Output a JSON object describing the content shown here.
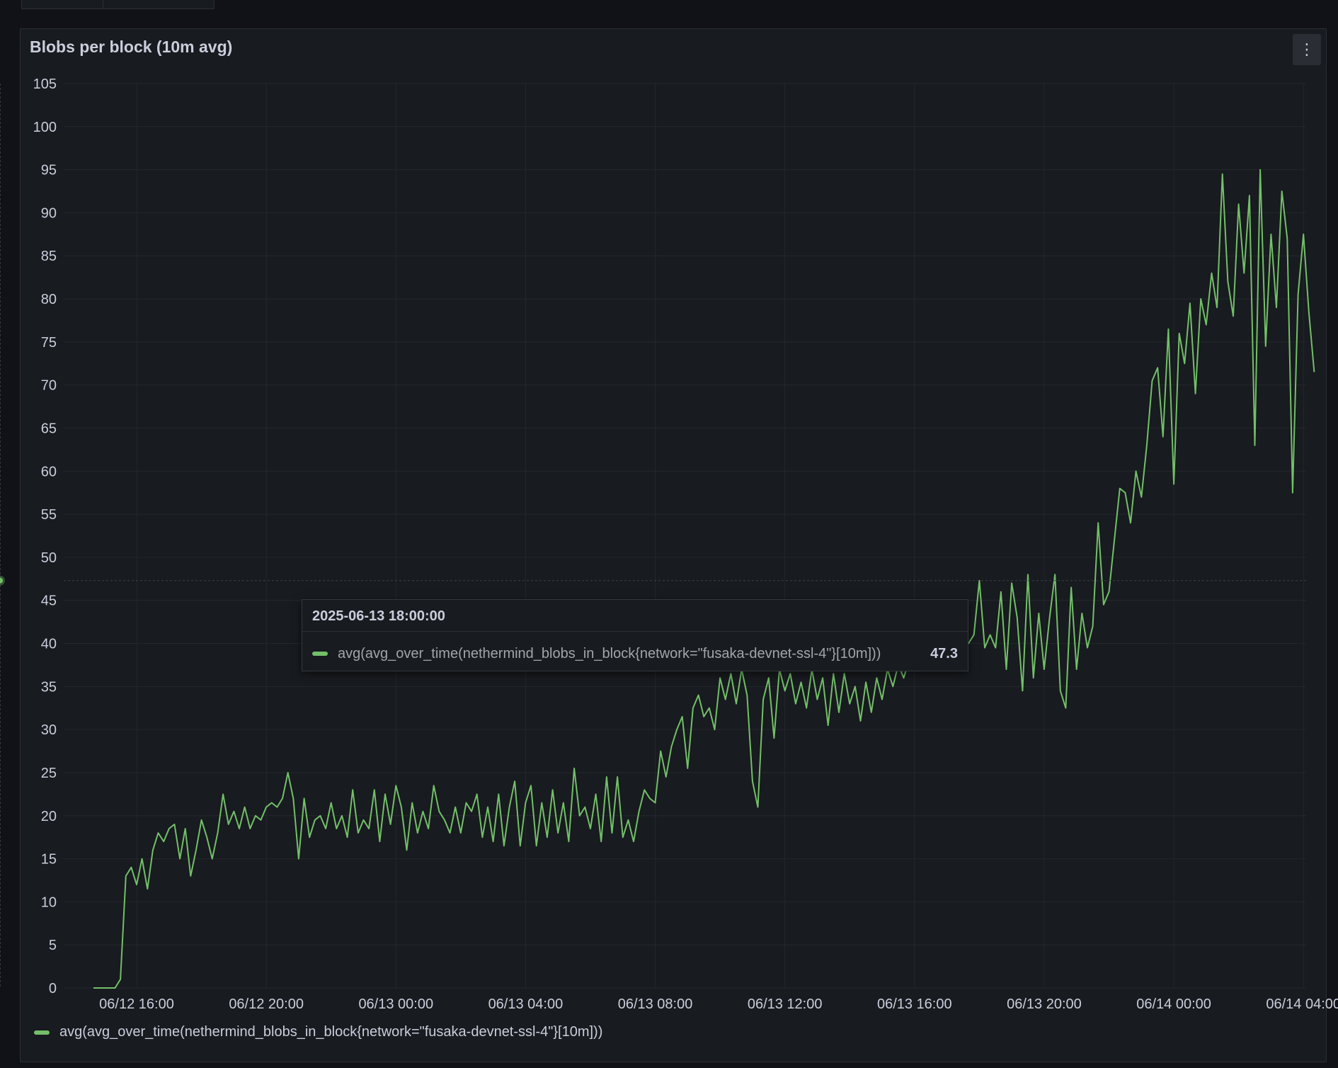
{
  "panel": {
    "title": "Blobs per block (10m avg)",
    "menu_icon": "kebab-menu-icon"
  },
  "colors": {
    "series": "#73bf69",
    "grid": "#24272c",
    "text": "#ccccdc",
    "panel_bg": "#181b1f"
  },
  "tooltip": {
    "time": "2025-06-13 18:00:00",
    "series_name": "avg(avg_over_time(nethermind_blobs_in_block{network=\"fusaka-devnet-ssl-4\"}[10m]))",
    "value": "47.3",
    "x": "2025-06-13 18:00:00",
    "y": 47.3
  },
  "legend": {
    "series_name": "avg(avg_over_time(nethermind_blobs_in_block{network=\"fusaka-devnet-ssl-4\"}[10m]))"
  },
  "chart_data": {
    "type": "line",
    "title": "Blobs per block (10m avg)",
    "xlabel": "",
    "ylabel": "",
    "xlim": [
      "2025-06-12 13:45",
      "2025-06-14 04:05"
    ],
    "ylim": [
      0,
      105
    ],
    "yticks": [
      0,
      5,
      10,
      15,
      20,
      25,
      30,
      35,
      40,
      45,
      50,
      55,
      60,
      65,
      70,
      75,
      80,
      85,
      90,
      95,
      100,
      105
    ],
    "xtick_labels": [
      "06/12 16:00",
      "06/12 20:00",
      "06/13 00:00",
      "06/13 04:00",
      "06/13 08:00",
      "06/13 12:00",
      "06/13 16:00",
      "06/13 20:00",
      "06/14 00:00",
      "06/14 04:00"
    ],
    "xticks": [
      "2025-06-12 16:00",
      "2025-06-12 20:00",
      "2025-06-13 00:00",
      "2025-06-13 04:00",
      "2025-06-13 08:00",
      "2025-06-13 12:00",
      "2025-06-13 16:00",
      "2025-06-13 20:00",
      "2025-06-14 00:00",
      "2025-06-14 04:00"
    ],
    "grid": true,
    "legend": "bottom-left",
    "series": [
      {
        "name": "avg(avg_over_time(nethermind_blobs_in_block{network=\"fusaka-devnet-ssl-4\"}[10m]))",
        "color": "#73bf69",
        "points": [
          [
            "2025-06-12 14:40",
            0
          ],
          [
            "2025-06-12 15:00",
            0
          ],
          [
            "2025-06-12 15:20",
            0
          ],
          [
            "2025-06-12 15:30",
            1
          ],
          [
            "2025-06-12 15:40",
            13
          ],
          [
            "2025-06-12 15:50",
            14
          ],
          [
            "2025-06-12 16:00",
            12
          ],
          [
            "2025-06-12 16:10",
            15
          ],
          [
            "2025-06-12 16:20",
            11.5
          ],
          [
            "2025-06-12 16:30",
            16
          ],
          [
            "2025-06-12 16:40",
            18
          ],
          [
            "2025-06-12 16:50",
            17
          ],
          [
            "2025-06-12 17:00",
            18.5
          ],
          [
            "2025-06-12 17:10",
            19
          ],
          [
            "2025-06-12 17:20",
            15
          ],
          [
            "2025-06-12 17:30",
            18.5
          ],
          [
            "2025-06-12 17:40",
            13
          ],
          [
            "2025-06-12 17:50",
            16
          ],
          [
            "2025-06-12 18:00",
            19.5
          ],
          [
            "2025-06-12 18:10",
            17.5
          ],
          [
            "2025-06-12 18:20",
            15
          ],
          [
            "2025-06-12 18:30",
            18
          ],
          [
            "2025-06-12 18:40",
            22.5
          ],
          [
            "2025-06-12 18:50",
            19
          ],
          [
            "2025-06-12 19:00",
            20.5
          ],
          [
            "2025-06-12 19:10",
            18.5
          ],
          [
            "2025-06-12 19:20",
            21
          ],
          [
            "2025-06-12 19:30",
            18.5
          ],
          [
            "2025-06-12 19:40",
            20
          ],
          [
            "2025-06-12 19:50",
            19.5
          ],
          [
            "2025-06-12 20:00",
            21
          ],
          [
            "2025-06-12 20:10",
            21.5
          ],
          [
            "2025-06-12 20:20",
            21
          ],
          [
            "2025-06-12 20:30",
            22
          ],
          [
            "2025-06-12 20:40",
            25
          ],
          [
            "2025-06-12 20:50",
            22
          ],
          [
            "2025-06-12 21:00",
            15
          ],
          [
            "2025-06-12 21:10",
            22
          ],
          [
            "2025-06-12 21:20",
            17.5
          ],
          [
            "2025-06-12 21:30",
            19.5
          ],
          [
            "2025-06-12 21:40",
            20
          ],
          [
            "2025-06-12 21:50",
            18.5
          ],
          [
            "2025-06-12 22:00",
            21.5
          ],
          [
            "2025-06-12 22:10",
            18.5
          ],
          [
            "2025-06-12 22:20",
            20
          ],
          [
            "2025-06-12 22:30",
            17.5
          ],
          [
            "2025-06-12 22:40",
            23
          ],
          [
            "2025-06-12 22:50",
            18
          ],
          [
            "2025-06-12 23:00",
            19.5
          ],
          [
            "2025-06-12 23:10",
            18.5
          ],
          [
            "2025-06-12 23:20",
            23
          ],
          [
            "2025-06-12 23:30",
            17
          ],
          [
            "2025-06-12 23:40",
            22.5
          ],
          [
            "2025-06-12 23:50",
            19
          ],
          [
            "2025-06-13 00:00",
            23.5
          ],
          [
            "2025-06-13 00:10",
            21
          ],
          [
            "2025-06-13 00:20",
            16
          ],
          [
            "2025-06-13 00:30",
            21.5
          ],
          [
            "2025-06-13 00:40",
            18
          ],
          [
            "2025-06-13 00:50",
            20.5
          ],
          [
            "2025-06-13 01:00",
            18.5
          ],
          [
            "2025-06-13 01:10",
            23.5
          ],
          [
            "2025-06-13 01:20",
            20.5
          ],
          [
            "2025-06-13 01:30",
            19.5
          ],
          [
            "2025-06-13 01:40",
            18
          ],
          [
            "2025-06-13 01:50",
            21
          ],
          [
            "2025-06-13 02:00",
            18
          ],
          [
            "2025-06-13 02:10",
            21.5
          ],
          [
            "2025-06-13 02:20",
            20.5
          ],
          [
            "2025-06-13 02:30",
            22.5
          ],
          [
            "2025-06-13 02:40",
            17.5
          ],
          [
            "2025-06-13 02:50",
            21
          ],
          [
            "2025-06-13 03:00",
            17
          ],
          [
            "2025-06-13 03:10",
            22.5
          ],
          [
            "2025-06-13 03:20",
            16.5
          ],
          [
            "2025-06-13 03:30",
            21
          ],
          [
            "2025-06-13 03:40",
            24
          ],
          [
            "2025-06-13 03:50",
            16.5
          ],
          [
            "2025-06-13 04:00",
            21.5
          ],
          [
            "2025-06-13 04:10",
            23.5
          ],
          [
            "2025-06-13 04:20",
            16.5
          ],
          [
            "2025-06-13 04:30",
            21.5
          ],
          [
            "2025-06-13 04:40",
            17.5
          ],
          [
            "2025-06-13 04:50",
            23
          ],
          [
            "2025-06-13 05:00",
            18
          ],
          [
            "2025-06-13 05:10",
            21.5
          ],
          [
            "2025-06-13 05:20",
            17
          ],
          [
            "2025-06-13 05:30",
            25.5
          ],
          [
            "2025-06-13 05:40",
            20
          ],
          [
            "2025-06-13 05:50",
            21
          ],
          [
            "2025-06-13 06:00",
            18.5
          ],
          [
            "2025-06-13 06:10",
            22.5
          ],
          [
            "2025-06-13 06:20",
            17
          ],
          [
            "2025-06-13 06:30",
            24.5
          ],
          [
            "2025-06-13 06:40",
            18
          ],
          [
            "2025-06-13 06:50",
            24.5
          ],
          [
            "2025-06-13 07:00",
            17.5
          ],
          [
            "2025-06-13 07:10",
            19.5
          ],
          [
            "2025-06-13 07:20",
            17
          ],
          [
            "2025-06-13 07:30",
            20.5
          ],
          [
            "2025-06-13 07:40",
            23
          ],
          [
            "2025-06-13 07:50",
            22
          ],
          [
            "2025-06-13 08:00",
            21.5
          ],
          [
            "2025-06-13 08:10",
            27.5
          ],
          [
            "2025-06-13 08:20",
            24.5
          ],
          [
            "2025-06-13 08:30",
            28
          ],
          [
            "2025-06-13 08:40",
            30
          ],
          [
            "2025-06-13 08:50",
            31.5
          ],
          [
            "2025-06-13 09:00",
            25.5
          ],
          [
            "2025-06-13 09:10",
            32.5
          ],
          [
            "2025-06-13 09:20",
            34
          ],
          [
            "2025-06-13 09:30",
            31.5
          ],
          [
            "2025-06-13 09:40",
            32.5
          ],
          [
            "2025-06-13 09:50",
            30
          ],
          [
            "2025-06-13 10:00",
            36
          ],
          [
            "2025-06-13 10:10",
            33.5
          ],
          [
            "2025-06-13 10:20",
            36.5
          ],
          [
            "2025-06-13 10:30",
            33
          ],
          [
            "2025-06-13 10:40",
            37
          ],
          [
            "2025-06-13 10:50",
            34
          ],
          [
            "2025-06-13 11:00",
            24
          ],
          [
            "2025-06-13 11:10",
            21
          ],
          [
            "2025-06-13 11:20",
            33.5
          ],
          [
            "2025-06-13 11:30",
            36
          ],
          [
            "2025-06-13 11:40",
            29
          ],
          [
            "2025-06-13 11:50",
            37
          ],
          [
            "2025-06-13 12:00",
            34.5
          ],
          [
            "2025-06-13 12:10",
            36.5
          ],
          [
            "2025-06-13 12:20",
            33
          ],
          [
            "2025-06-13 12:30",
            35.5
          ],
          [
            "2025-06-13 12:40",
            32.5
          ],
          [
            "2025-06-13 12:50",
            37
          ],
          [
            "2025-06-13 13:00",
            33.5
          ],
          [
            "2025-06-13 13:10",
            36
          ],
          [
            "2025-06-13 13:20",
            30.5
          ],
          [
            "2025-06-13 13:30",
            36.5
          ],
          [
            "2025-06-13 13:40",
            32
          ],
          [
            "2025-06-13 13:50",
            36.5
          ],
          [
            "2025-06-13 14:00",
            33
          ],
          [
            "2025-06-13 14:10",
            35
          ],
          [
            "2025-06-13 14:20",
            31
          ],
          [
            "2025-06-13 14:30",
            35.5
          ],
          [
            "2025-06-13 14:40",
            32
          ],
          [
            "2025-06-13 14:50",
            36
          ],
          [
            "2025-06-13 15:00",
            33.5
          ],
          [
            "2025-06-13 15:10",
            37
          ],
          [
            "2025-06-13 15:20",
            35
          ],
          [
            "2025-06-13 15:30",
            37.5
          ],
          [
            "2025-06-13 15:40",
            36
          ],
          [
            "2025-06-13 15:50",
            38
          ],
          [
            "2025-06-13 16:00",
            37
          ],
          [
            "2025-06-13 16:10",
            39
          ],
          [
            "2025-06-13 16:20",
            38
          ],
          [
            "2025-06-13 16:30",
            40
          ],
          [
            "2025-06-13 16:40",
            39
          ],
          [
            "2025-06-13 16:50",
            40.5
          ],
          [
            "2025-06-13 17:00",
            39.5
          ],
          [
            "2025-06-13 17:10",
            41
          ],
          [
            "2025-06-13 17:20",
            40
          ],
          [
            "2025-06-13 17:30",
            41
          ],
          [
            "2025-06-13 17:40",
            40
          ],
          [
            "2025-06-13 17:50",
            41
          ],
          [
            "2025-06-13 18:00",
            47.3
          ],
          [
            "2025-06-13 18:10",
            39.5
          ],
          [
            "2025-06-13 18:20",
            41
          ],
          [
            "2025-06-13 18:30",
            39.5
          ],
          [
            "2025-06-13 18:40",
            46
          ],
          [
            "2025-06-13 18:50",
            37
          ],
          [
            "2025-06-13 19:00",
            47
          ],
          [
            "2025-06-13 19:10",
            43
          ],
          [
            "2025-06-13 19:20",
            34.5
          ],
          [
            "2025-06-13 19:30",
            48
          ],
          [
            "2025-06-13 19:40",
            36
          ],
          [
            "2025-06-13 19:50",
            43.5
          ],
          [
            "2025-06-13 20:00",
            37
          ],
          [
            "2025-06-13 20:10",
            43
          ],
          [
            "2025-06-13 20:20",
            48
          ],
          [
            "2025-06-13 20:30",
            34.5
          ],
          [
            "2025-06-13 20:40",
            32.5
          ],
          [
            "2025-06-13 20:50",
            46.5
          ],
          [
            "2025-06-13 21:00",
            37
          ],
          [
            "2025-06-13 21:10",
            43.5
          ],
          [
            "2025-06-13 21:20",
            39.5
          ],
          [
            "2025-06-13 21:30",
            42
          ],
          [
            "2025-06-13 21:40",
            54
          ],
          [
            "2025-06-13 21:50",
            44.5
          ],
          [
            "2025-06-13 22:00",
            46
          ],
          [
            "2025-06-13 22:10",
            52
          ],
          [
            "2025-06-13 22:20",
            58
          ],
          [
            "2025-06-13 22:30",
            57.5
          ],
          [
            "2025-06-13 22:40",
            54
          ],
          [
            "2025-06-13 22:50",
            60
          ],
          [
            "2025-06-13 23:00",
            57
          ],
          [
            "2025-06-13 23:10",
            63
          ],
          [
            "2025-06-13 23:20",
            70.5
          ],
          [
            "2025-06-13 23:30",
            72
          ],
          [
            "2025-06-13 23:40",
            64
          ],
          [
            "2025-06-13 23:50",
            76.5
          ],
          [
            "2025-06-14 00:00",
            58.5
          ],
          [
            "2025-06-14 00:10",
            76
          ],
          [
            "2025-06-14 00:20",
            72.5
          ],
          [
            "2025-06-14 00:30",
            79.5
          ],
          [
            "2025-06-14 00:40",
            69
          ],
          [
            "2025-06-14 00:50",
            80
          ],
          [
            "2025-06-14 01:00",
            77
          ],
          [
            "2025-06-14 01:10",
            83
          ],
          [
            "2025-06-14 01:20",
            79
          ],
          [
            "2025-06-14 01:30",
            94.5
          ],
          [
            "2025-06-14 01:40",
            82
          ],
          [
            "2025-06-14 01:50",
            78
          ],
          [
            "2025-06-14 02:00",
            91
          ],
          [
            "2025-06-14 02:10",
            83
          ],
          [
            "2025-06-14 02:20",
            92
          ],
          [
            "2025-06-14 02:30",
            63
          ],
          [
            "2025-06-14 02:40",
            95
          ],
          [
            "2025-06-14 02:50",
            74.5
          ],
          [
            "2025-06-14 03:00",
            87.5
          ],
          [
            "2025-06-14 03:10",
            79
          ],
          [
            "2025-06-14 03:20",
            92.5
          ],
          [
            "2025-06-14 03:30",
            87
          ],
          [
            "2025-06-14 03:40",
            57.5
          ],
          [
            "2025-06-14 03:50",
            80.5
          ],
          [
            "2025-06-14 04:00",
            87.5
          ],
          [
            "2025-06-14 04:10",
            78.5
          ],
          [
            "2025-06-14 04:20",
            71.5
          ]
        ]
      }
    ]
  }
}
